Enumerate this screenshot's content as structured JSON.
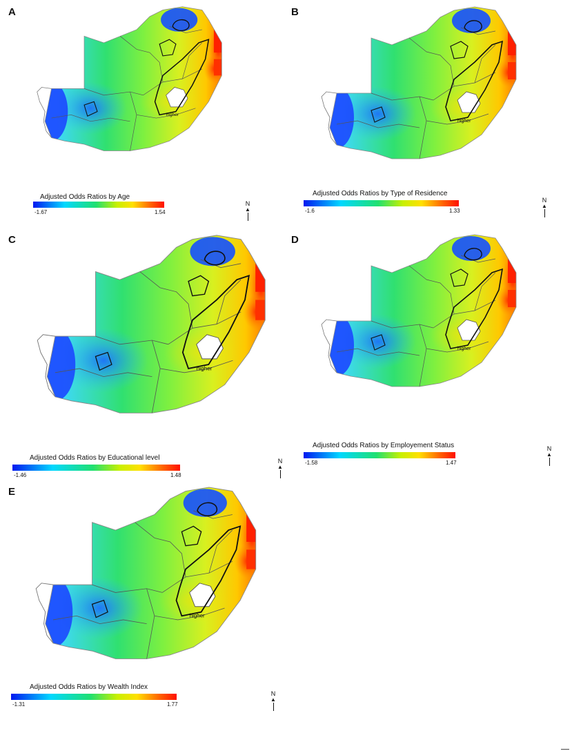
{
  "panels": [
    {
      "letter": "A",
      "legend_title": "Adjusted Odds Ratios by Age",
      "min": "-1.67",
      "max": "1.54",
      "contour_label": "higher"
    },
    {
      "letter": "B",
      "legend_title": "Adjusted Odds Ratios by Type of Residence",
      "min": "-1.6",
      "max": "1.33",
      "contour_label": "higher"
    },
    {
      "letter": "C",
      "legend_title": "Adjusted Odds Ratios by Educational level",
      "min": "-1.46",
      "max": "1.48",
      "contour_label": "higher"
    },
    {
      "letter": "D",
      "legend_title": "Adjusted Odds Ratios by Employement Status",
      "min": "-1.58",
      "max": "1.47",
      "contour_label": "higher"
    },
    {
      "letter": "E",
      "legend_title": "Adjusted Odds Ratios by Wealth Index",
      "min": "-1.31",
      "max": "1.77",
      "contour_label": "higher"
    }
  ],
  "north_label": "N",
  "colors": {
    "low": "#0018f0",
    "mid": "#20e070",
    "high": "#ff1000"
  }
}
